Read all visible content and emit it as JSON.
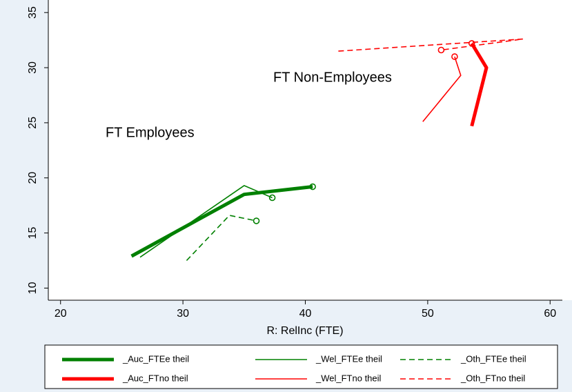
{
  "chart_data": {
    "type": "line",
    "x_label": "R: RelInc (FTE)",
    "annotations": [
      "FT Employees",
      "FT Non-Employees"
    ],
    "xlim": [
      19,
      61
    ],
    "xticks": [
      20,
      30,
      40,
      50,
      60
    ],
    "ylim": [
      8.9,
      35.2
    ],
    "yticks": [
      10,
      15,
      20,
      25,
      30,
      35
    ],
    "grid": false,
    "series": [
      {
        "name": "_Auc_FTEe theil",
        "color": "#008000",
        "style": "thick",
        "x": [
          25.8,
          35,
          40.6
        ],
        "values": [
          12.9,
          18.5,
          19.2
        ]
      },
      {
        "name": "_Wel_FTEe theil",
        "color": "#008000",
        "style": "thin",
        "x": [
          26.5,
          35,
          37.3
        ],
        "values": [
          12.8,
          19.3,
          18.2
        ]
      },
      {
        "name": "_Oth_FTEe theil",
        "color": "#008000",
        "style": "dashed",
        "x": [
          30.3,
          33.8,
          36
        ],
        "values": [
          12.5,
          16.6,
          16.1
        ]
      },
      {
        "name": "_Auc_FTno theil",
        "color": "#ff0000",
        "style": "thick",
        "x": [
          53.6,
          54.8,
          53.6
        ],
        "values": [
          24.7,
          30,
          32.2
        ]
      },
      {
        "name": "_Wel_FTno theil",
        "color": "#ff0000",
        "style": "thin",
        "x": [
          49.6,
          52.7,
          52.2
        ],
        "values": [
          25.1,
          29.3,
          31
        ]
      },
      {
        "name": "_Oth_FTno theil",
        "color": "#ff0000",
        "style": "dashed",
        "x": [
          42.7,
          57.8,
          51.1
        ],
        "values": [
          31.5,
          32.6,
          31.6
        ]
      }
    ]
  }
}
